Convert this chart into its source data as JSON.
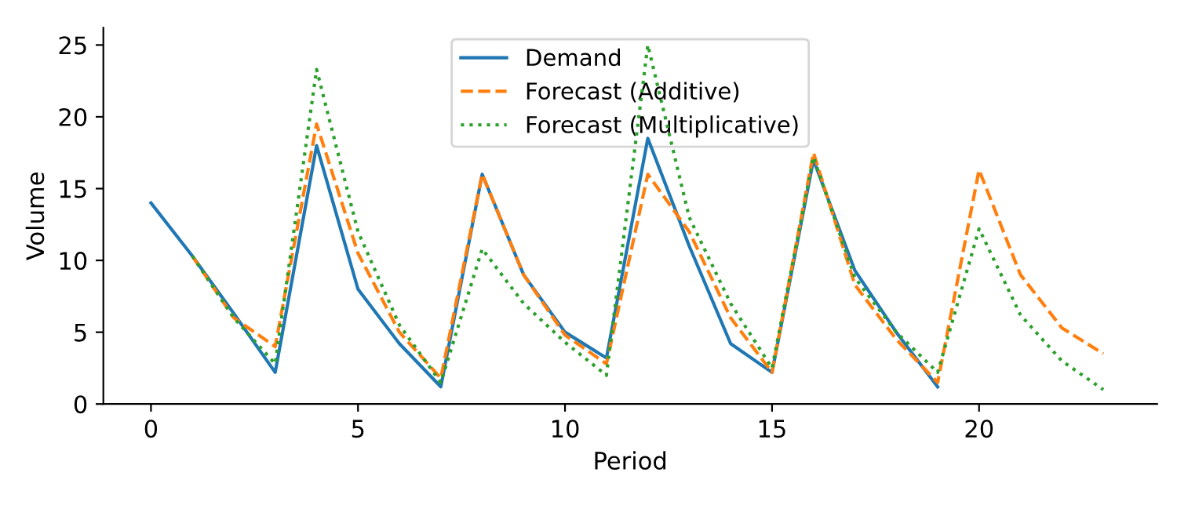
{
  "chart_data": {
    "type": "line",
    "xlabel": "Period",
    "ylabel": "Volume",
    "xlim": [
      -1.15,
      24.3
    ],
    "ylim": [
      0,
      26.2
    ],
    "xticks": [
      0,
      5,
      10,
      15,
      20
    ],
    "yticks": [
      0,
      5,
      10,
      15,
      20,
      25
    ],
    "grid": false,
    "legend": "top",
    "marker": "none",
    "series": [
      {
        "name": "Demand",
        "color": "#1f77b4",
        "line_style": "solid",
        "x": [
          0,
          1,
          2,
          3,
          4,
          5,
          6,
          7,
          8,
          9,
          10,
          11,
          12,
          13,
          14,
          15,
          16,
          17,
          18,
          19
        ],
        "values": [
          14,
          10.3,
          6.3,
          2.2,
          18,
          8,
          4.2,
          1.2,
          16,
          9,
          5,
          3.2,
          18.5,
          11,
          4.2,
          2.2,
          17,
          9.3,
          5,
          1.2
        ]
      },
      {
        "name": "Forecast (Additive)",
        "color": "#ff7f0e",
        "line_style": "dashed",
        "x": [
          1,
          2,
          3,
          4,
          5,
          6,
          7,
          8,
          9,
          10,
          11,
          12,
          13,
          14,
          15,
          16,
          17,
          18,
          19,
          20,
          21,
          22,
          23
        ],
        "values": [
          10.3,
          6,
          4,
          19.5,
          10.5,
          5,
          1.8,
          16,
          9,
          4.8,
          2.8,
          16,
          12,
          6,
          2.2,
          17.5,
          8.3,
          4.5,
          1.5,
          16.3,
          9,
          5.3,
          3.5
        ]
      },
      {
        "name": "Forecast (Multiplicative)",
        "color": "#2ca02c",
        "line_style": "dotted",
        "x": [
          1,
          2,
          3,
          4,
          5,
          6,
          7,
          8,
          9,
          10,
          11,
          12,
          13,
          14,
          15,
          16,
          17,
          18,
          19,
          20,
          21,
          22,
          23
        ],
        "values": [
          10.3,
          6,
          2.8,
          23.3,
          12,
          5.5,
          1.5,
          10.8,
          7,
          4.3,
          2,
          25,
          13,
          7,
          2.5,
          17.2,
          8.8,
          5,
          2.2,
          12.2,
          6.2,
          3,
          1
        ]
      }
    ]
  }
}
